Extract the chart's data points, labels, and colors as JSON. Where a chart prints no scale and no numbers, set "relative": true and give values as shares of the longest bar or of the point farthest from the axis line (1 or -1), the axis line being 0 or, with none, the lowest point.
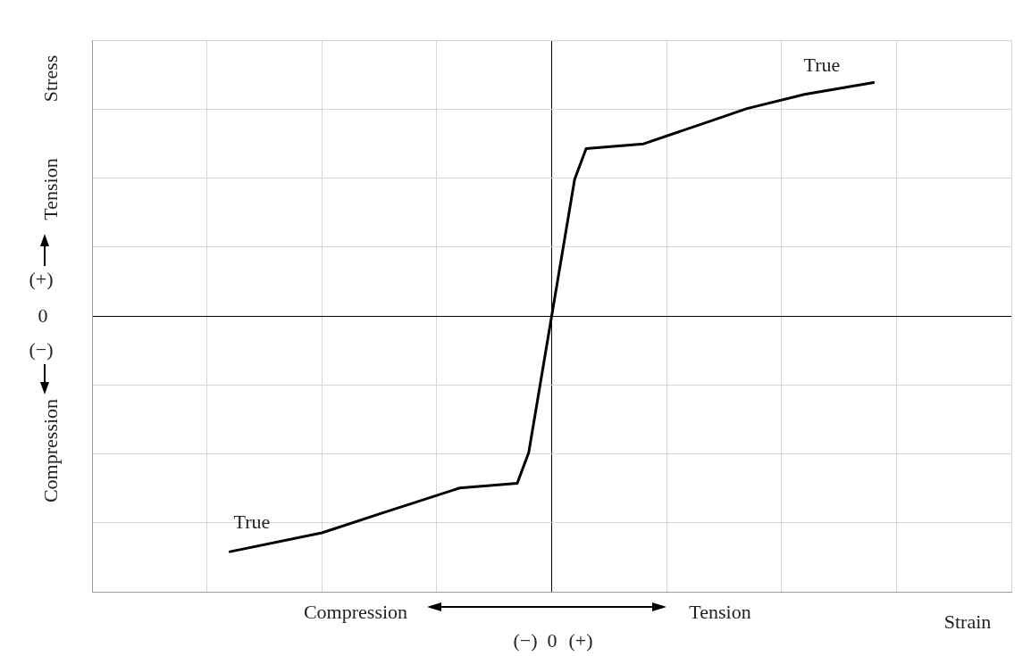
{
  "chart_data": {
    "type": "line",
    "xlabel": "Strain",
    "ylabel": "Stress",
    "categories": [
      null,
      null,
      null,
      null,
      null,
      null,
      null,
      null,
      null,
      null,
      null,
      null,
      null,
      null,
      null,
      null,
      null,
      null,
      null,
      null,
      null,
      null,
      null,
      null,
      null,
      null,
      null,
      null,
      null,
      null,
      null,
      null,
      null,
      null,
      null,
      null,
      null,
      null,
      null,
      null,
      null,
      null,
      null,
      null,
      null,
      null,
      null,
      null,
      null,
      null,
      null,
      null,
      null,
      null,
      null,
      null,
      null,
      null,
      null,
      null,
      null,
      null,
      null,
      null,
      null,
      null,
      null,
      null,
      null,
      null,
      null,
      null,
      null,
      null,
      null,
      null,
      null,
      null,
      null,
      null,
      null
    ],
    "values": [
      null,
      null,
      null,
      null,
      null,
      null,
      null,
      null,
      null,
      null,
      null,
      null,
      -1,
      null,
      null,
      null,
      null,
      null,
      null,
      null,
      -0.92,
      null,
      null,
      null,
      null,
      -0.84,
      null,
      null,
      null,
      null,
      null,
      null,
      -0.73,
      null,
      null,
      null,
      null,
      -0.71,
      -0.58,
      null,
      0,
      null,
      0.58,
      0.71,
      null,
      null,
      null,
      null,
      0.73,
      null,
      null,
      0.78,
      null,
      null,
      null,
      null,
      null,
      0.88,
      null,
      null,
      null,
      null,
      0.94,
      null,
      null,
      null,
      null,
      null,
      0.99,
      null,
      null,
      null,
      null,
      null,
      null,
      null,
      null,
      null,
      null,
      null,
      null
    ],
    "color": "#000000",
    "relative": true,
    "marker": "none",
    "line_style": "solid",
    "grid": true,
    "legend": false,
    "annotations": [
      "Tension",
      "(+)",
      "0",
      "(−)",
      "Compression",
      "Compression",
      "Tension",
      "(−)",
      "0",
      "(+)",
      "True",
      "True"
    ]
  }
}
